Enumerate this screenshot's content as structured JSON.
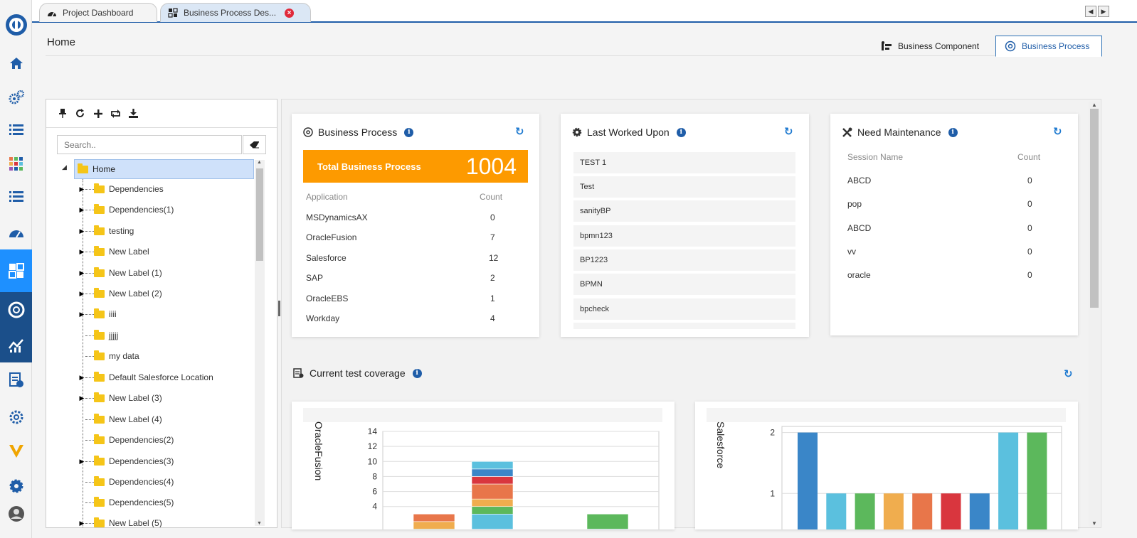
{
  "tabs": [
    {
      "label": "Project Dashboard",
      "icon": "dashboard-icon"
    },
    {
      "label": "Business Process Des...",
      "icon": "puzzle-icon"
    }
  ],
  "header": {
    "title": "Home",
    "tabs": [
      {
        "label": "Business Component",
        "icon": "component-icon"
      },
      {
        "label": "Business Process",
        "icon": "target-icon"
      }
    ]
  },
  "sidebar": {
    "icons": [
      "logo-icon",
      "home-icon",
      "gears-icon",
      "list-icon",
      "grid-icon",
      "list-icon",
      "dashboard-icon",
      "puzzle-icon",
      "lifebuoy-icon",
      "analytics-icon",
      "report-icon",
      "settings-icon",
      "v-logo-icon",
      "gear-icon",
      "avatar-icon"
    ]
  },
  "tree": {
    "search_placeholder": "Search..",
    "root": "Home",
    "nodes": [
      {
        "label": "Dependencies",
        "expandable": true
      },
      {
        "label": "Dependencies(1)",
        "expandable": true
      },
      {
        "label": "testing",
        "expandable": true
      },
      {
        "label": "New Label",
        "expandable": true
      },
      {
        "label": "New Label (1)",
        "expandable": true
      },
      {
        "label": "New Label (2)",
        "expandable": true
      },
      {
        "label": "iiii",
        "expandable": true
      },
      {
        "label": "jjjjj",
        "expandable": false
      },
      {
        "label": "my data",
        "expandable": false
      },
      {
        "label": "Default Salesforce Location",
        "expandable": true
      },
      {
        "label": "New Label (3)",
        "expandable": true
      },
      {
        "label": "New Label (4)",
        "expandable": false
      },
      {
        "label": "Dependencies(2)",
        "expandable": false
      },
      {
        "label": "Dependencies(3)",
        "expandable": true
      },
      {
        "label": "Dependencies(4)",
        "expandable": false
      },
      {
        "label": "Dependencies(5)",
        "expandable": false
      },
      {
        "label": "New Label (5)",
        "expandable": true
      }
    ]
  },
  "business_process": {
    "title": "Business Process",
    "total_label": "Total Business Process",
    "total": "1004",
    "col_app": "Application",
    "col_count": "Count",
    "rows": [
      {
        "app": "MSDynamicsAX",
        "count": "0"
      },
      {
        "app": "OracleFusion",
        "count": "7"
      },
      {
        "app": "Salesforce",
        "count": "12"
      },
      {
        "app": "SAP",
        "count": "2"
      },
      {
        "app": "OracleEBS",
        "count": "1"
      },
      {
        "app": "Workday",
        "count": "4"
      }
    ],
    "accent": "#fd9a00"
  },
  "last_worked": {
    "title": "Last Worked Upon",
    "items": [
      "TEST 1",
      "Test",
      "sanityBP",
      "bpmn123",
      "BP1223",
      "BPMN",
      "bpcheck"
    ]
  },
  "need_maintenance": {
    "title": "Need Maintenance",
    "col_session": "Session Name",
    "col_count": "Count",
    "rows": [
      {
        "name": "ABCD",
        "count": "0"
      },
      {
        "name": "pop",
        "count": "0"
      },
      {
        "name": "ABCD",
        "count": "0"
      },
      {
        "name": "vv",
        "count": "0"
      },
      {
        "name": "oracle",
        "count": "0"
      }
    ]
  },
  "coverage": {
    "title": "Current test coverage"
  },
  "chart_data": [
    {
      "type": "bar",
      "title": "OracleFusion",
      "stacked": true,
      "ylim": [
        0,
        14
      ],
      "yticks": [
        4,
        6,
        8,
        10,
        12,
        14
      ],
      "bars": [
        {
          "segments": [
            {
              "value": 1,
              "color": "#5cb85c"
            },
            {
              "value": 1,
              "color": "#f0ad4e"
            },
            {
              "value": 1,
              "color": "#e8764a"
            }
          ]
        },
        {
          "segments": [
            {
              "value": 1,
              "color": "#3a86c8"
            },
            {
              "value": 2,
              "color": "#5bc0de"
            },
            {
              "value": 1,
              "color": "#5cb85c"
            },
            {
              "value": 1,
              "color": "#f0ad4e"
            },
            {
              "value": 2,
              "color": "#e8764a"
            },
            {
              "value": 1,
              "color": "#d9363e"
            },
            {
              "value": 1,
              "color": "#3a86c8"
            },
            {
              "value": 1,
              "color": "#5bc0de"
            }
          ]
        },
        {
          "segments": [
            {
              "value": 1,
              "color": "#5bc0de"
            },
            {
              "value": 2,
              "color": "#5cb85c"
            }
          ]
        }
      ],
      "grid": true
    },
    {
      "type": "bar",
      "title": "Salesforce",
      "ylim": [
        0,
        2.1
      ],
      "yticks": [
        1,
        2
      ],
      "values": [
        2,
        1,
        1,
        1,
        1,
        1,
        1,
        2,
        2
      ],
      "colors": [
        "#3a86c8",
        "#5bc0de",
        "#5cb85c",
        "#f0ad4e",
        "#e8764a",
        "#d9363e",
        "#3a86c8",
        "#5bc0de",
        "#5cb85c"
      ],
      "grid": true
    }
  ]
}
